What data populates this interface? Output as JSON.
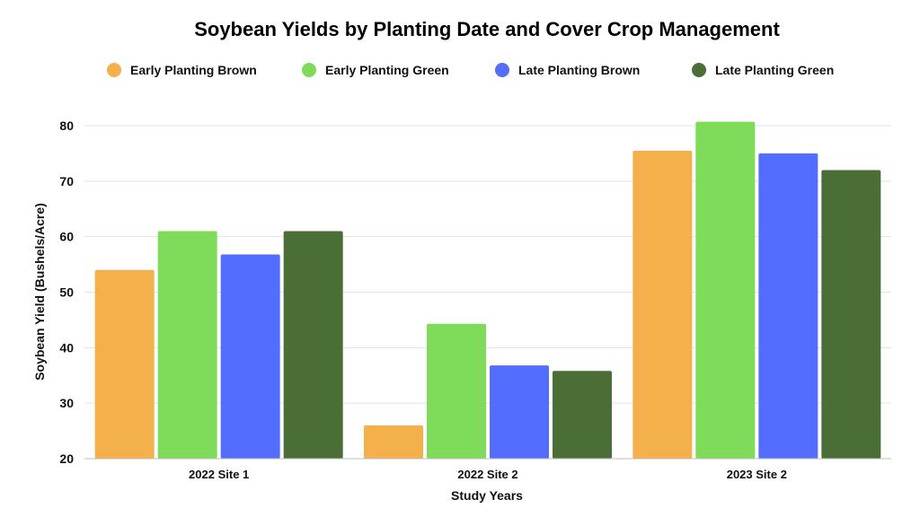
{
  "chart_data": {
    "type": "bar",
    "title": "Soybean Yields by Planting Date and Cover Crop Management",
    "xlabel": "Study Years",
    "ylabel": "Soybean Yield (Bushels/Acre)",
    "ylim": [
      20,
      80
    ],
    "yticks": [
      20,
      30,
      40,
      50,
      60,
      70,
      80
    ],
    "grid": true,
    "legend_position": "top",
    "categories": [
      "2022 Site 1",
      "2022 Site 2",
      "2023 Site 2"
    ],
    "series": [
      {
        "name": "Early Planting Brown",
        "color": "#F4B04A",
        "values": [
          54,
          26,
          75.5
        ]
      },
      {
        "name": "Early Planting Green",
        "color": "#7EDC5A",
        "values": [
          61,
          44.3,
          80.7
        ]
      },
      {
        "name": "Late Planting Brown",
        "color": "#536DFE",
        "values": [
          56.8,
          36.8,
          75
        ]
      },
      {
        "name": "Late Planting Green",
        "color": "#4A6E35",
        "values": [
          61,
          35.8,
          72
        ]
      }
    ]
  }
}
